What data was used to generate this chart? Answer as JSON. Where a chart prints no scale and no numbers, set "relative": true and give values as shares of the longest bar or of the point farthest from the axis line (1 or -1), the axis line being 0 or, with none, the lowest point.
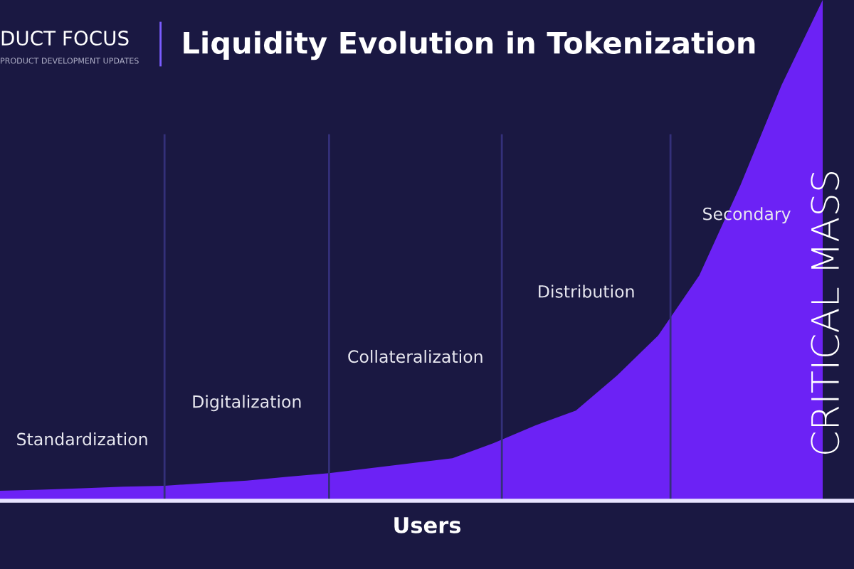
{
  "chart_data": {
    "type": "area",
    "title": "Liquidity Evolution in Tokenization",
    "xlabel": "Users",
    "relative": true,
    "categories": [
      null,
      null,
      null,
      null,
      null,
      null,
      null,
      null,
      null,
      null,
      null,
      null,
      null,
      null,
      null,
      null,
      null,
      null,
      null,
      null,
      null
    ],
    "series": [
      {
        "color": "#6c22f5",
        "values": [
          0.02,
          0.022,
          0.025,
          0.028,
          0.03,
          0.035,
          0.04,
          0.048,
          0.055,
          0.065,
          0.075,
          0.085,
          0.115,
          0.15,
          0.18,
          0.25,
          0.33,
          0.45,
          0.63,
          0.83,
          1.0
        ]
      }
    ],
    "annotations": [
      "Standardization",
      "Digitalization",
      "Collateralization",
      "Distribution",
      "Secondary",
      "CRITICAL MASS",
      "DUCT FOCUS",
      "PRODUCT DEVELOPMENT UPDATES"
    ],
    "legend": false
  }
}
